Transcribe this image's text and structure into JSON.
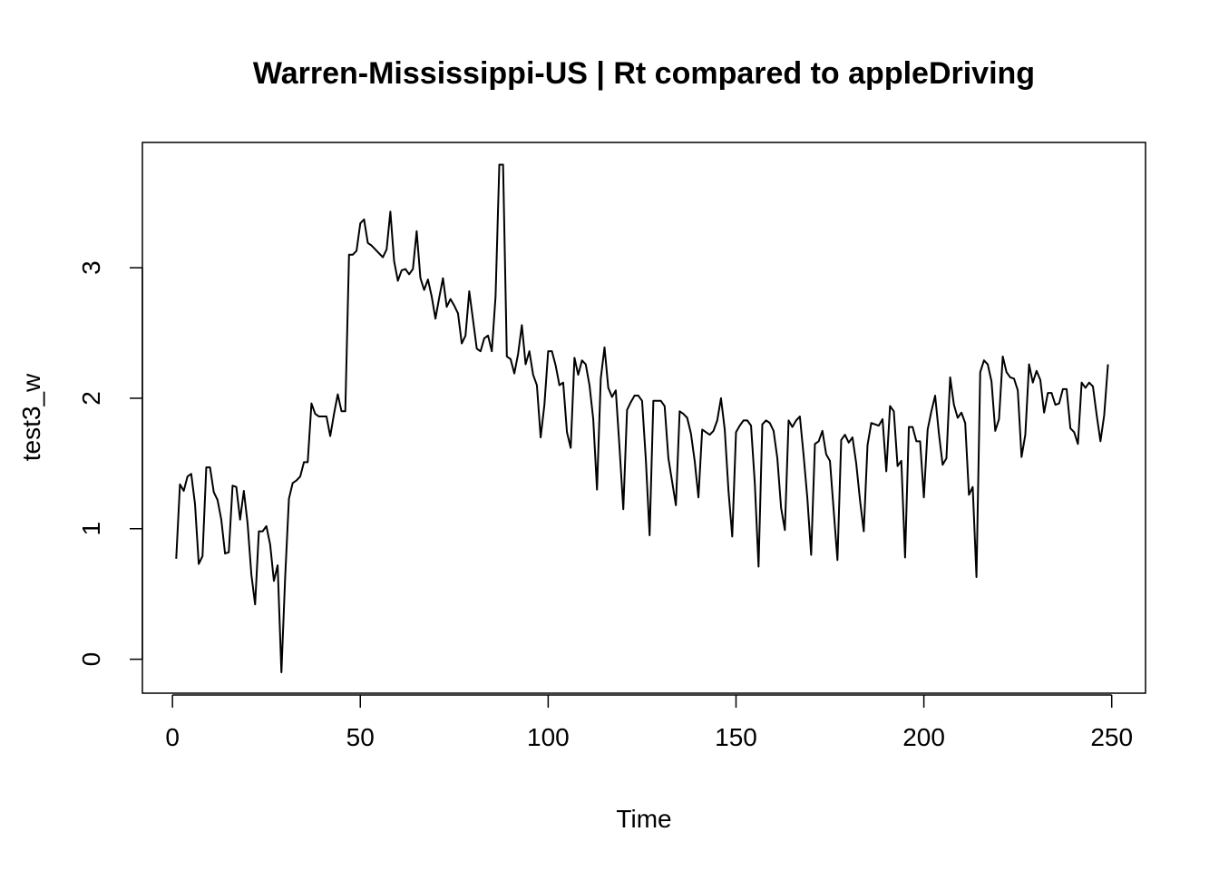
{
  "chart_data": {
    "type": "line",
    "title": "Warren-Mississippi-US | Rt compared to appleDriving",
    "xlabel": "Time",
    "ylabel": "test3_w",
    "xlim": [
      -8,
      259
    ],
    "ylim": [
      -0.26,
      3.96
    ],
    "xticks": [
      0,
      50,
      100,
      150,
      200,
      250
    ],
    "yticks": [
      0,
      1,
      2,
      3
    ],
    "x_start": 1,
    "series": [
      {
        "color": "#000000",
        "values": [
          0.77,
          1.34,
          1.29,
          1.4,
          1.42,
          1.19,
          0.73,
          0.79,
          1.47,
          1.47,
          1.28,
          1.22,
          1.07,
          0.81,
          0.82,
          1.33,
          1.32,
          1.07,
          1.29,
          1.04,
          0.65,
          0.42,
          0.98,
          0.98,
          1.02,
          0.88,
          0.6,
          0.72,
          -0.1,
          0.63,
          1.23,
          1.35,
          1.37,
          1.4,
          1.51,
          1.51,
          1.96,
          1.88,
          1.86,
          1.86,
          1.86,
          1.71,
          1.88,
          2.03,
          1.9,
          1.9,
          3.1,
          3.1,
          3.13,
          3.34,
          3.37,
          3.19,
          3.17,
          3.14,
          3.11,
          3.08,
          3.14,
          3.43,
          3.05,
          2.9,
          2.98,
          2.99,
          2.95,
          2.99,
          3.28,
          2.92,
          2.83,
          2.91,
          2.78,
          2.61,
          2.77,
          2.92,
          2.7,
          2.76,
          2.71,
          2.65,
          2.42,
          2.48,
          2.82,
          2.6,
          2.38,
          2.36,
          2.46,
          2.48,
          2.36,
          2.78,
          3.79,
          3.79,
          2.32,
          2.3,
          2.19,
          2.34,
          2.56,
          2.26,
          2.36,
          2.18,
          2.1,
          1.7,
          1.95,
          2.36,
          2.36,
          2.25,
          2.1,
          2.12,
          1.74,
          1.62,
          2.31,
          2.18,
          2.29,
          2.26,
          2.1,
          1.84,
          1.3,
          2.15,
          2.39,
          2.08,
          2.01,
          2.06,
          1.62,
          1.15,
          1.91,
          1.97,
          2.02,
          2.02,
          1.98,
          1.53,
          0.95,
          1.98,
          1.98,
          1.98,
          1.94,
          1.54,
          1.36,
          1.18,
          1.9,
          1.88,
          1.85,
          1.73,
          1.52,
          1.24,
          1.76,
          1.74,
          1.72,
          1.75,
          1.83,
          2.0,
          1.76,
          1.29,
          0.94,
          1.74,
          1.79,
          1.83,
          1.83,
          1.79,
          1.35,
          0.71,
          1.8,
          1.83,
          1.81,
          1.75,
          1.54,
          1.16,
          0.99,
          1.83,
          1.78,
          1.83,
          1.86,
          1.56,
          1.23,
          0.8,
          1.65,
          1.67,
          1.75,
          1.57,
          1.52,
          1.14,
          0.76,
          1.68,
          1.72,
          1.66,
          1.7,
          1.5,
          1.22,
          0.98,
          1.64,
          1.81,
          1.8,
          1.79,
          1.84,
          1.44,
          1.94,
          1.9,
          1.48,
          1.52,
          0.78,
          1.78,
          1.78,
          1.67,
          1.67,
          1.24,
          1.76,
          1.9,
          2.02,
          1.73,
          1.49,
          1.54,
          2.16,
          1.95,
          1.85,
          1.89,
          1.81,
          1.26,
          1.32,
          0.63,
          2.2,
          2.29,
          2.26,
          2.13,
          1.75,
          1.84,
          2.32,
          2.2,
          2.16,
          2.15,
          2.06,
          1.55,
          1.72,
          2.26,
          2.12,
          2.21,
          2.14,
          1.89,
          2.04,
          2.04,
          1.95,
          1.96,
          2.07,
          2.07,
          1.77,
          1.74,
          1.65,
          2.12,
          2.08,
          2.12,
          2.09,
          1.87,
          1.67,
          1.87,
          2.26
        ]
      }
    ]
  }
}
